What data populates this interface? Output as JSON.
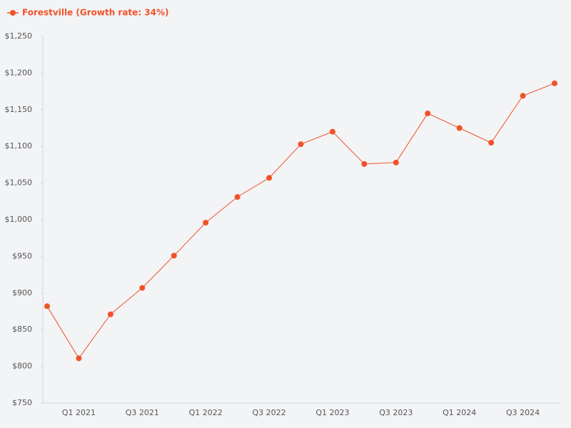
{
  "chart_data": {
    "type": "line",
    "categories": [
      null,
      "Q1 2021",
      null,
      "Q3 2021",
      null,
      "Q1 2022",
      null,
      "Q3 2022",
      null,
      "Q1 2023",
      null,
      "Q3 2023",
      null,
      "Q1 2024",
      null,
      "Q3 2024",
      null
    ],
    "series": [
      {
        "name": "Forestville (Growth rate: 34%)",
        "color": "#f0522a",
        "values": [
          882,
          811,
          871,
          907,
          951,
          996,
          1031,
          1057,
          1103,
          1120,
          1076,
          1078,
          1145,
          1125,
          1105,
          1169,
          1186
        ]
      }
    ],
    "ylim": [
      750,
      1250
    ],
    "yticks": [
      {
        "value": 750,
        "label": "$750"
      },
      {
        "value": 800,
        "label": "$800"
      },
      {
        "value": 850,
        "label": "$850"
      },
      {
        "value": 900,
        "label": "$900"
      },
      {
        "value": 950,
        "label": "$950"
      },
      {
        "value": 1000,
        "label": "$1,000"
      },
      {
        "value": 1050,
        "label": "$1,050"
      },
      {
        "value": 1100,
        "label": "$1,100"
      },
      {
        "value": 1150,
        "label": "$1,150"
      },
      {
        "value": 1200,
        "label": "$1,200"
      },
      {
        "value": 1250,
        "label": "$1,250"
      }
    ],
    "grid": false,
    "legend": "top-left"
  }
}
